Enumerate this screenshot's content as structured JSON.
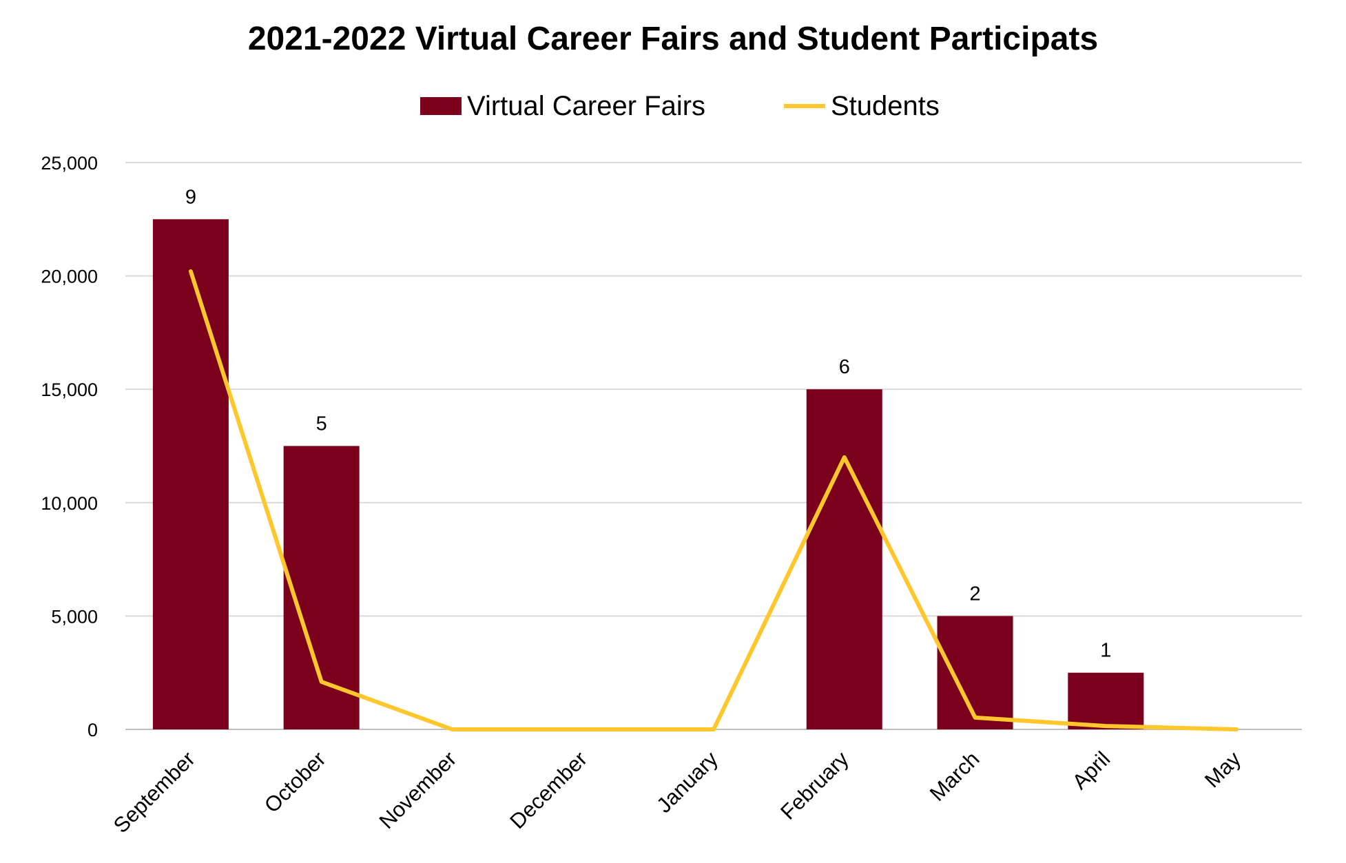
{
  "chart_data": {
    "type": "bar",
    "title": "2021-2022 Virtual Career Fairs and Student Participats",
    "categories": [
      "September",
      "October",
      "November",
      "December",
      "January",
      "February",
      "March",
      "April",
      "May"
    ],
    "y_axis": {
      "ylim": [
        0,
        25000
      ],
      "ticks": [
        "0",
        "5,000",
        "10,000",
        "15,000",
        "20,000",
        "25,000"
      ]
    },
    "series": [
      {
        "name": "Virtual Career Fairs",
        "type": "bar",
        "color": "#7B001C",
        "values": [
          9,
          5,
          0,
          0,
          0,
          6,
          2,
          1,
          0
        ],
        "data_labels": [
          "9",
          "5",
          "",
          "",
          "",
          "6",
          "2",
          "1",
          ""
        ]
      },
      {
        "name": "Students",
        "type": "line",
        "color": "#FFC72C",
        "values": [
          20200,
          2100,
          0,
          0,
          0,
          12000,
          520,
          150,
          0
        ]
      }
    ],
    "grid": true,
    "legend_position": "top"
  }
}
